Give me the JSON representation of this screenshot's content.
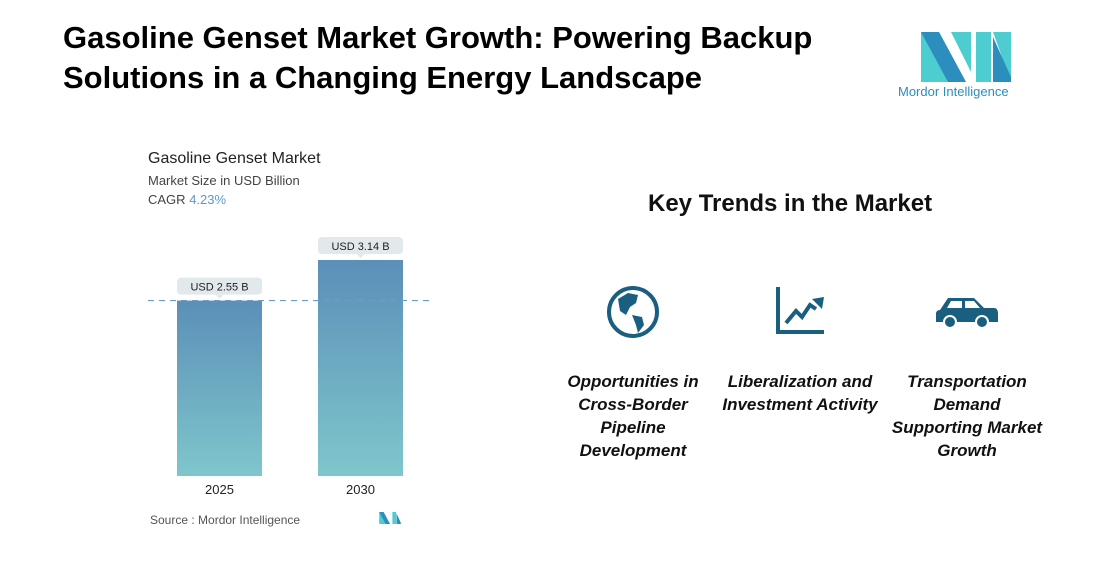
{
  "title": "Gasoline Genset Market Growth: Powering Backup Solutions in a Changing Energy Landscape",
  "logo": {
    "text": "Mordor Intelligence",
    "colors": [
      "#2b8ebd",
      "#4ecdd0"
    ]
  },
  "chart_data": {
    "type": "bar",
    "title": "Gasoline Genset Market",
    "subtitle": "Market Size in USD Billion",
    "cagr_label": "CAGR",
    "cagr_value": "4.23%",
    "categories": [
      "2025",
      "2030"
    ],
    "values": [
      2.55,
      3.14
    ],
    "data_labels": [
      "USD 2.55 B",
      "USD 3.14 B"
    ],
    "ylim": [
      0,
      3.14
    ],
    "bar_colors": [
      "#5b8fb8",
      "#7fc6cc"
    ],
    "reference_line": 2.55,
    "source": "Source :  Mordor Intelligence"
  },
  "trends": {
    "heading": "Key Trends in the Market",
    "icon_color": "#1a5e80",
    "items": [
      {
        "icon": "globe-icon",
        "label": "Opportunities in Cross-Border Pipeline Development"
      },
      {
        "icon": "chart-growth-icon",
        "label": "Liberalization and Investment Activity"
      },
      {
        "icon": "car-icon",
        "label": "Transportation Demand Supporting Market Growth"
      }
    ]
  }
}
